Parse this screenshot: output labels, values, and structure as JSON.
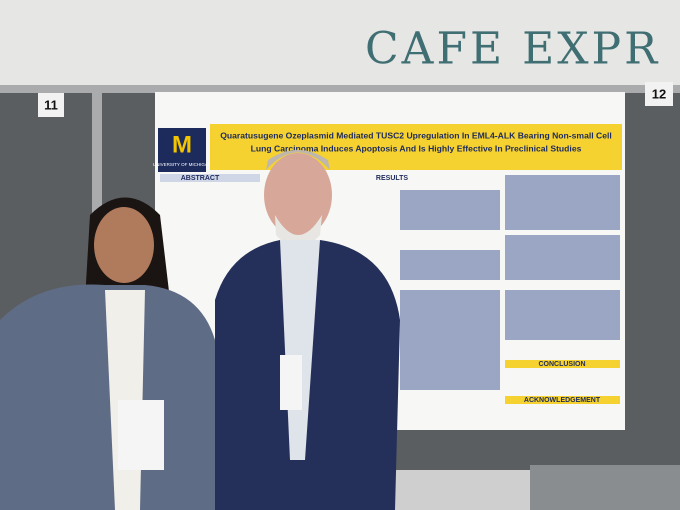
{
  "sign": {
    "text": "CAFE EXPR"
  },
  "booths": {
    "left": "11",
    "right": "12"
  },
  "poster": {
    "logo": {
      "letter": "M",
      "name": "UNIVERSITY OF MICHIGAN"
    },
    "title_lines": [
      "Quaratusugene Ozeplasmid Mediated TUSC2 Upregulation In EML4-ALK Bearing Non-small Cell",
      "Lung Carcinoma Induces Apoptosis And Is Highly Effective In Preclinical Studies"
    ],
    "sections": {
      "abstract": "ABSTRACT",
      "results": "RESULTS",
      "conclusion": "CONCLUSION",
      "acknowledgement": "ACKNOWLEDGEMENT"
    }
  }
}
